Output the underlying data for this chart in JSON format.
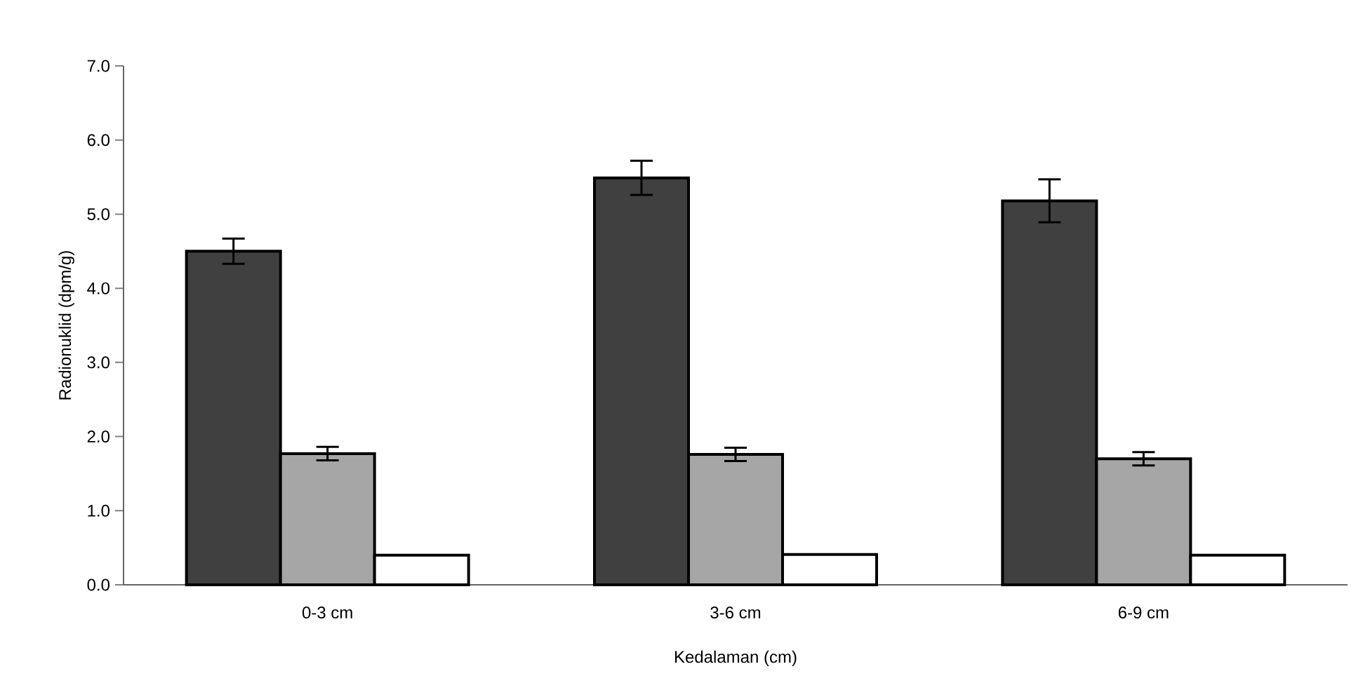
{
  "chart_data": {
    "type": "bar",
    "xlabel": "Kedalaman (cm)",
    "ylabel": "Radionuklid (dpm/g)",
    "categories": [
      "0-3 cm",
      "3-6 cm",
      "6-9 cm"
    ],
    "series": [
      {
        "color": "#404040",
        "values": [
          4.5,
          5.49,
          5.18
        ],
        "errors": [
          0.17,
          0.23,
          0.29
        ]
      },
      {
        "color": "#a6a6a6",
        "values": [
          1.77,
          1.76,
          1.7
        ],
        "errors": [
          0.09,
          0.09,
          0.09
        ]
      },
      {
        "color": "#ffffff",
        "values": [
          0.4,
          0.41,
          0.4
        ]
      }
    ],
    "ylim": [
      0,
      7
    ],
    "yticks": [
      {
        "value": 0,
        "label": "0.0"
      },
      {
        "value": 1,
        "label": "1.0"
      },
      {
        "value": 2,
        "label": "2.0"
      },
      {
        "value": 3,
        "label": "3.0"
      },
      {
        "value": 4,
        "label": "4.0"
      },
      {
        "value": 5,
        "label": "5.0"
      },
      {
        "value": 6,
        "label": "6.0"
      },
      {
        "value": 7,
        "label": "7.0"
      }
    ],
    "grid": false,
    "legend": false
  }
}
